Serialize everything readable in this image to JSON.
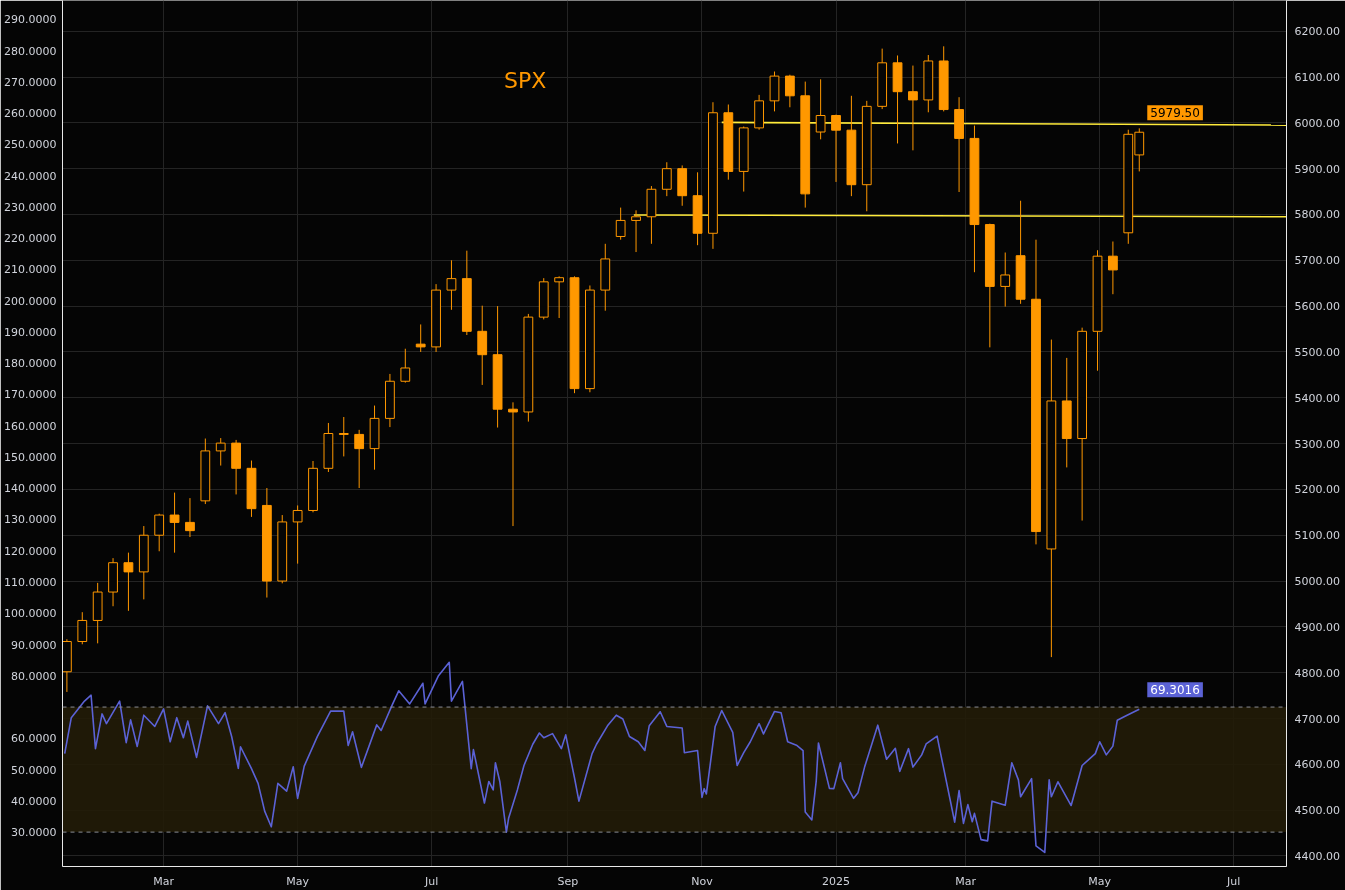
{
  "chart_data": {
    "type": "candlestick",
    "title": "SPX",
    "xlim": [
      "2024-01-15",
      "2025-07-25"
    ],
    "xticks": [
      {
        "value": "2024-03-01",
        "label": "Mar"
      },
      {
        "value": "2024-05-01",
        "label": "May"
      },
      {
        "value": "2024-07-01",
        "label": "Jul"
      },
      {
        "value": "2024-09-01",
        "label": "Sep"
      },
      {
        "value": "2024-11-01",
        "label": "Nov"
      },
      {
        "value": "2025-01-01",
        "label": "2025"
      },
      {
        "value": "2025-03-01",
        "label": "Mar"
      },
      {
        "value": "2025-05-01",
        "label": "May"
      },
      {
        "value": "2025-07-01",
        "label": "Jul"
      }
    ],
    "ylim": [
      19,
      296
    ],
    "yticks": [
      {
        "value": 30,
        "label": "30.0000"
      },
      {
        "value": 40,
        "label": "40.0000"
      },
      {
        "value": 50,
        "label": "50.0000"
      },
      {
        "value": 60,
        "label": "60.0000"
      },
      {
        "value": 80,
        "label": "80.0000"
      },
      {
        "value": 90,
        "label": "90.0000"
      },
      {
        "value": 100,
        "label": "100.0000"
      },
      {
        "value": 110,
        "label": "110.0000"
      },
      {
        "value": 120,
        "label": "120.0000"
      },
      {
        "value": 130,
        "label": "130.0000"
      },
      {
        "value": 140,
        "label": "140.0000"
      },
      {
        "value": 150,
        "label": "150.0000"
      },
      {
        "value": 160,
        "label": "160.0000"
      },
      {
        "value": 170,
        "label": "170.0000"
      },
      {
        "value": 180,
        "label": "180.0000"
      },
      {
        "value": 190,
        "label": "190.0000"
      },
      {
        "value": 200,
        "label": "200.0000"
      },
      {
        "value": 210,
        "label": "210.0000"
      },
      {
        "value": 220,
        "label": "220.0000"
      },
      {
        "value": 230,
        "label": "230.0000"
      },
      {
        "value": 240,
        "label": "240.0000"
      },
      {
        "value": 250,
        "label": "250.0000"
      },
      {
        "value": 260,
        "label": "260.0000"
      },
      {
        "value": 270,
        "label": "270.0000"
      },
      {
        "value": 280,
        "label": "280.0000"
      },
      {
        "value": 290,
        "label": "290.0000"
      }
    ],
    "y2lim": [
      4377,
      6267
    ],
    "y2ticks": [
      {
        "value": 4400,
        "label": "4400.00"
      },
      {
        "value": 4500,
        "label": "4500.00"
      },
      {
        "value": 4600,
        "label": "4600.00"
      },
      {
        "value": 4700,
        "label": "4700.00"
      },
      {
        "value": 4800,
        "label": "4800.00"
      },
      {
        "value": 4900,
        "label": "4900.00"
      },
      {
        "value": 5000,
        "label": "5000.00"
      },
      {
        "value": 5100,
        "label": "5100.00"
      },
      {
        "value": 5200,
        "label": "5200.00"
      },
      {
        "value": 5300,
        "label": "5300.00"
      },
      {
        "value": 5400,
        "label": "5400.00"
      },
      {
        "value": 5500,
        "label": "5500.00"
      },
      {
        "value": 5600,
        "label": "5600.00"
      },
      {
        "value": 5700,
        "label": "5700.00"
      },
      {
        "value": 5800,
        "label": "5800.00"
      },
      {
        "value": 5900,
        "label": "5900.00"
      },
      {
        "value": 6000,
        "label": "6000.00"
      },
      {
        "value": 6100,
        "label": "6100.00"
      },
      {
        "value": 6200,
        "label": "6200.00"
      }
    ],
    "grid": true,
    "series": [
      {
        "axis": "y2",
        "color": "#ff9800",
        "x": [
          "2024-01-17",
          "2024-01-24",
          "2024-01-31",
          "2024-02-07",
          "2024-02-14",
          "2024-02-21",
          "2024-02-28",
          "2024-03-06",
          "2024-03-13",
          "2024-03-20",
          "2024-03-27",
          "2024-04-03",
          "2024-04-10",
          "2024-04-17",
          "2024-04-24",
          "2024-05-01",
          "2024-05-08",
          "2024-05-15",
          "2024-05-22",
          "2024-05-29",
          "2024-06-05",
          "2024-06-12",
          "2024-06-19",
          "2024-06-26",
          "2024-07-03",
          "2024-07-10",
          "2024-07-17",
          "2024-07-24",
          "2024-07-31",
          "2024-08-07",
          "2024-08-14",
          "2024-08-21",
          "2024-08-28",
          "2024-09-04",
          "2024-09-11",
          "2024-09-18",
          "2024-09-25",
          "2024-10-02",
          "2024-10-09",
          "2024-10-16",
          "2024-10-23",
          "2024-10-30",
          "2024-11-06",
          "2024-11-13",
          "2024-11-20",
          "2024-11-27",
          "2024-12-04",
          "2024-12-11",
          "2024-12-18",
          "2024-12-25",
          "2025-01-01",
          "2025-01-08",
          "2025-01-15",
          "2025-01-22",
          "2025-01-29",
          "2025-02-05",
          "2025-02-12",
          "2025-02-19",
          "2025-02-26",
          "2025-03-05",
          "2025-03-12",
          "2025-03-19",
          "2025-03-26",
          "2025-04-02",
          "2025-04-09",
          "2025-04-16",
          "2025-04-23",
          "2025-04-30",
          "2025-05-07",
          "2025-05-14",
          "2025-05-19"
        ],
        "ohlc": [
          [
            4802,
            4873,
            4758,
            4868
          ],
          [
            4868,
            4932,
            4862,
            4914
          ],
          [
            4914,
            4996,
            4864,
            4976
          ],
          [
            4976,
            5050,
            4945,
            5040
          ],
          [
            5040,
            5062,
            4935,
            5020
          ],
          [
            5020,
            5120,
            4960,
            5100
          ],
          [
            5100,
            5147,
            5065,
            5144
          ],
          [
            5144,
            5193,
            5062,
            5128
          ],
          [
            5128,
            5181,
            5096,
            5110
          ],
          [
            5175,
            5311,
            5168,
            5284
          ],
          [
            5284,
            5312,
            5252,
            5301
          ],
          [
            5301,
            5308,
            5189,
            5246
          ],
          [
            5246,
            5263,
            5140,
            5158
          ],
          [
            5165,
            5203,
            4964,
            5000
          ],
          [
            5000,
            5144,
            4995,
            5129
          ],
          [
            5129,
            5165,
            5038,
            5154
          ],
          [
            5154,
            5262,
            5150,
            5246
          ],
          [
            5246,
            5345,
            5238,
            5322
          ],
          [
            5322,
            5358,
            5272,
            5320
          ],
          [
            5320,
            5330,
            5203,
            5289
          ],
          [
            5289,
            5383,
            5243,
            5355
          ],
          [
            5355,
            5452,
            5336,
            5436
          ],
          [
            5436,
            5507,
            5433,
            5465
          ],
          [
            5517,
            5560,
            5500,
            5511
          ],
          [
            5511,
            5648,
            5500,
            5635
          ],
          [
            5635,
            5700,
            5592,
            5660
          ],
          [
            5660,
            5721,
            5537,
            5545
          ],
          [
            5545,
            5601,
            5428,
            5494
          ],
          [
            5494,
            5600,
            5335,
            5375
          ],
          [
            5375,
            5390,
            5120,
            5369
          ],
          [
            5369,
            5583,
            5348,
            5576
          ],
          [
            5576,
            5661,
            5571,
            5653
          ],
          [
            5653,
            5665,
            5574,
            5662
          ],
          [
            5662,
            5665,
            5410,
            5420
          ],
          [
            5420,
            5645,
            5412,
            5635
          ],
          [
            5635,
            5736,
            5590,
            5703
          ],
          [
            5752,
            5815,
            5745,
            5787
          ],
          [
            5787,
            5809,
            5718,
            5795
          ],
          [
            5795,
            5862,
            5736,
            5855
          ],
          [
            5855,
            5914,
            5840,
            5900
          ],
          [
            5900,
            5907,
            5819,
            5841
          ],
          [
            5841,
            5892,
            5733,
            5759
          ],
          [
            5759,
            6045,
            5725,
            6022
          ],
          [
            6022,
            6040,
            5876,
            5894
          ],
          [
            5894,
            5992,
            5850,
            5989
          ],
          [
            5989,
            6061,
            5985,
            6048
          ],
          [
            6048,
            6112,
            6025,
            6102
          ],
          [
            6102,
            6105,
            6034,
            6059
          ],
          [
            6059,
            6090,
            5815,
            5845
          ],
          [
            5980,
            6095,
            5964,
            6016
          ],
          [
            6016,
            6018,
            5871,
            5984
          ],
          [
            5984,
            6059,
            5840,
            5865
          ],
          [
            5865,
            6048,
            5807,
            6036
          ],
          [
            6036,
            6162,
            6030,
            6131
          ],
          [
            6131,
            6147,
            5955,
            6068
          ],
          [
            6068,
            6125,
            5940,
            6050
          ],
          [
            6050,
            6148,
            6023,
            6135
          ],
          [
            6135,
            6167,
            6025,
            6029
          ],
          [
            6029,
            6056,
            5849,
            5966
          ],
          [
            5966,
            5994,
            5674,
            5778
          ],
          [
            5778,
            5780,
            5510,
            5643
          ],
          [
            5643,
            5717,
            5599,
            5668
          ],
          [
            5710,
            5830,
            5605,
            5615
          ],
          [
            5615,
            5745,
            5080,
            5108
          ],
          [
            5070,
            5527,
            4834,
            5393
          ],
          [
            5393,
            5487,
            5248,
            5311
          ],
          [
            5311,
            5553,
            5132,
            5545
          ],
          [
            5545,
            5722,
            5459,
            5709
          ],
          [
            5709,
            5741,
            5626,
            5679
          ],
          [
            5760,
            5985,
            5736,
            5975
          ],
          [
            5930,
            5988,
            5894,
            5979.5
          ]
        ]
      },
      {
        "type": "line",
        "color": "#5b62d6",
        "x": [
          "2024-01-16",
          "2024-01-19",
          "2024-01-25",
          "2024-01-28",
          "2024-01-30",
          "2024-02-02",
          "2024-02-04",
          "2024-02-10",
          "2024-02-13",
          "2024-02-15",
          "2024-02-18",
          "2024-02-21",
          "2024-02-26",
          "2024-03-01",
          "2024-03-04",
          "2024-03-07",
          "2024-03-10",
          "2024-03-12",
          "2024-03-16",
          "2024-03-21",
          "2024-03-26",
          "2024-03-29",
          "2024-04-01",
          "2024-04-04",
          "2024-04-05",
          "2024-04-10",
          "2024-04-13",
          "2024-04-16",
          "2024-04-19",
          "2024-04-22",
          "2024-04-26",
          "2024-04-29",
          "2024-05-01",
          "2024-05-04",
          "2024-05-10",
          "2024-05-16",
          "2024-05-22",
          "2024-05-24",
          "2024-05-26",
          "2024-05-30",
          "2024-06-06",
          "2024-06-08",
          "2024-06-13",
          "2024-06-16",
          "2024-06-21",
          "2024-06-27",
          "2024-06-28",
          "2024-07-04",
          "2024-07-09",
          "2024-07-10",
          "2024-07-15",
          "2024-07-19",
          "2024-07-20",
          "2024-07-25",
          "2024-07-27",
          "2024-07-29",
          "2024-07-30",
          "2024-08-01",
          "2024-08-04",
          "2024-08-05",
          "2024-08-09",
          "2024-08-12",
          "2024-08-16",
          "2024-08-19",
          "2024-08-21",
          "2024-08-25",
          "2024-08-29",
          "2024-08-31",
          "2024-09-04",
          "2024-09-06",
          "2024-09-12",
          "2024-09-14",
          "2024-09-19",
          "2024-09-23",
          "2024-09-26",
          "2024-09-29",
          "2024-10-03",
          "2024-10-06",
          "2024-10-08",
          "2024-10-13",
          "2024-10-16",
          "2024-10-23",
          "2024-10-24",
          "2024-10-30",
          "2024-11-01",
          "2024-11-02",
          "2024-11-03",
          "2024-11-07",
          "2024-11-10",
          "2024-11-15",
          "2024-11-17",
          "2024-11-20",
          "2024-11-23",
          "2024-11-27",
          "2024-11-29",
          "2024-12-04",
          "2024-12-07",
          "2024-12-10",
          "2024-12-14",
          "2024-12-17",
          "2024-12-18",
          "2024-12-21",
          "2024-12-23",
          "2024-12-24",
          "2024-12-29",
          "2024-12-31",
          "2025-01-03",
          "2025-01-04",
          "2025-01-09",
          "2025-01-11",
          "2025-01-14",
          "2025-01-20",
          "2025-01-24",
          "2025-01-28",
          "2025-01-30",
          "2025-02-03",
          "2025-02-05",
          "2025-02-09",
          "2025-02-11",
          "2025-02-16",
          "2025-02-17",
          "2025-02-22",
          "2025-02-24",
          "2025-02-26",
          "2025-02-28",
          "2025-03-02",
          "2025-03-04",
          "2025-03-05",
          "2025-03-08",
          "2025-03-11",
          "2025-03-13",
          "2025-03-19",
          "2025-03-22",
          "2025-03-25",
          "2025-03-26",
          "2025-03-31",
          "2025-04-02",
          "2025-04-06",
          "2025-04-08",
          "2025-04-09",
          "2025-04-12",
          "2025-04-18",
          "2025-04-23",
          "2025-04-29",
          "2025-05-01",
          "2025-05-04",
          "2025-05-07",
          "2025-05-09",
          "2025-05-13",
          "2025-05-19"
        ],
        "values": [
          55.1,
          66.6,
          71.9,
          73.8,
          56.7,
          67.8,
          64.7,
          71.9,
          58.6,
          65.9,
          57.4,
          67.4,
          63.8,
          69.4,
          58.9,
          66.6,
          60.2,
          65.5,
          53.9,
          70.4,
          64.7,
          68.2,
          60.5,
          50.4,
          57.3,
          50.3,
          45.6,
          36.7,
          31.7,
          45.6,
          43.1,
          50.9,
          40.8,
          51.1,
          60.6,
          68.7,
          68.7,
          57.7,
          62.1,
          50.7,
          64.3,
          62.5,
          70.6,
          75.2,
          71.0,
          77.6,
          71.0,
          79.9,
          84.3,
          71.9,
          78.2,
          50.3,
          56.4,
          39.3,
          46.2,
          43.5,
          52.2,
          46.2,
          30.0,
          34.4,
          43.5,
          51.3,
          58.1,
          61.7,
          60.2,
          61.5,
          56.7,
          61.1,
          47.3,
          39.9,
          55.1,
          58.1,
          64.0,
          67.4,
          66.2,
          60.6,
          58.9,
          56.1,
          64.0,
          68.5,
          63.8,
          63.3,
          55.4,
          56.1,
          41.1,
          43.9,
          42.2,
          63.8,
          68.9,
          61.9,
          51.3,
          55.4,
          58.9,
          64.7,
          61.4,
          68.6,
          68.2,
          58.9,
          57.8,
          56.1,
          36.4,
          33.9,
          46.4,
          58.5,
          44.0,
          43.9,
          52.2,
          47.1,
          40.8,
          42.6,
          50.8,
          64.2,
          53.3,
          56.8,
          49.4,
          56.7,
          50.8,
          54.7,
          58.2,
          60.7,
          57.2,
          40.1,
          33.2,
          43.3,
          32.8,
          38.8,
          33.3,
          36.0,
          27.6,
          27.2,
          39.9,
          38.6,
          52.2,
          46.7,
          41.3,
          47.1,
          25.6,
          23.5,
          46.7,
          41.3,
          46.1,
          38.5,
          51.3,
          55.1,
          58.9,
          54.7,
          57.5,
          65.8,
          67.2,
          69.3016
        ]
      },
      {
        "type": "line",
        "axis": "y2",
        "color": "#ffeb3b",
        "x": [
          "2024-11-10",
          "2025-07-25"
        ],
        "values": [
          6001,
          5995
        ]
      },
      {
        "type": "line",
        "axis": "y2",
        "color": "#ffeb3b",
        "x": [
          "2024-10-01",
          "2025-07-25"
        ],
        "values": [
          5799,
          5795
        ]
      }
    ],
    "bands": [
      {
        "axis": "y",
        "from": 30,
        "to": 70,
        "color": "#221c08"
      }
    ],
    "ref_lines": [
      {
        "axis": "y",
        "value": 70,
        "color": "#8a8d96",
        "line_style": "dashed"
      },
      {
        "axis": "y",
        "value": 30,
        "color": "#8a8d96",
        "line_style": "dashed"
      }
    ],
    "annotations": [
      "5979.50",
      {
        "text": "69.3016",
        "x": "2025-05-19",
        "y": 69.3016
      }
    ]
  }
}
